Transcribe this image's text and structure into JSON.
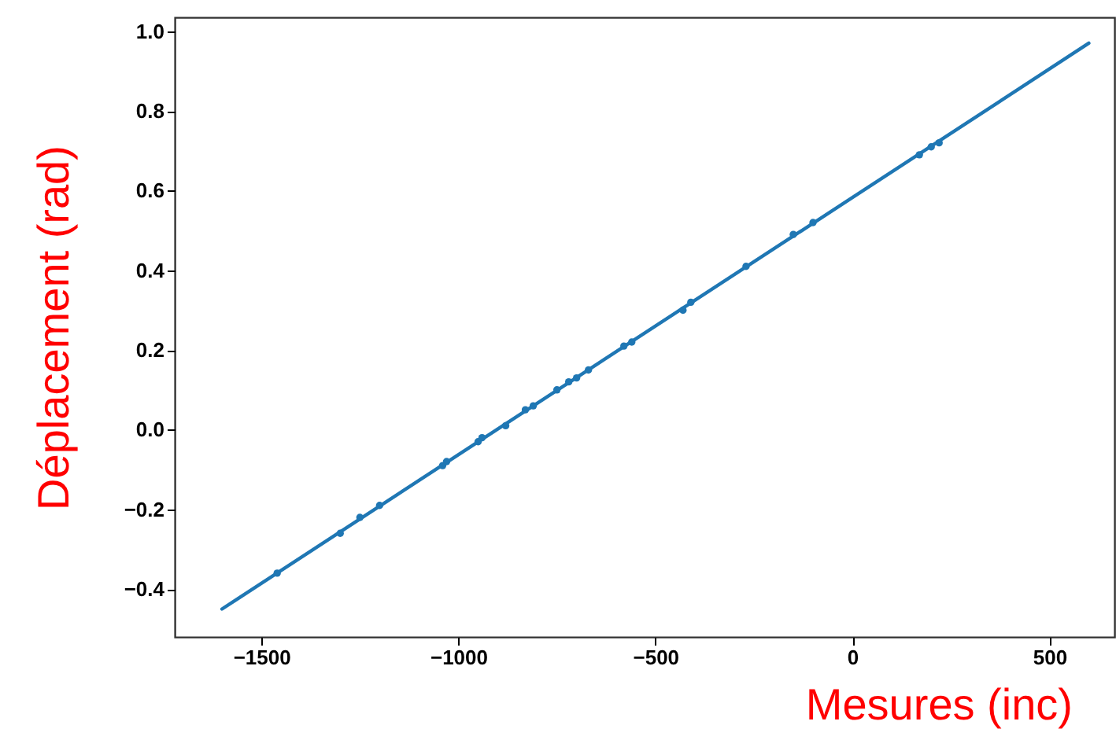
{
  "chart_data": {
    "type": "scatter",
    "xlabel": "Mesures (inc)",
    "ylabel": "Déplacement (rad)",
    "xlim": [
      -1720,
      665
    ],
    "ylim": [
      -0.52,
      1.035
    ],
    "xticks": [
      -1500,
      -1000,
      -500,
      0,
      500
    ],
    "yticks": [
      -0.4,
      -0.2,
      {
        "value": 0,
        "label": "0.0"
      },
      0.2,
      0.4,
      0.6,
      0.8,
      {
        "value": 1,
        "label": "1.0"
      }
    ],
    "grid": false,
    "series": [
      {
        "type": "line",
        "color": "#1f77b4",
        "marker": "none",
        "line_style": "solid",
        "x": [
          -1600,
          600
        ],
        "values": [
          -0.45,
          0.97
        ]
      },
      {
        "color": "#1f77b4",
        "marker": "circle",
        "x": [
          -1460,
          -1300,
          -1250,
          -1200,
          -1040,
          -1030,
          -950,
          -940,
          -880,
          -830,
          -810,
          -750,
          -720,
          -700,
          -670,
          -580,
          -560,
          -430,
          -410,
          -270,
          -150,
          -100,
          170,
          200,
          220
        ],
        "values": [
          -0.36,
          -0.26,
          -0.22,
          -0.19,
          -0.09,
          -0.08,
          -0.03,
          -0.02,
          0.01,
          0.05,
          0.06,
          0.1,
          0.12,
          0.13,
          0.15,
          0.21,
          0.22,
          0.3,
          0.32,
          0.41,
          0.49,
          0.52,
          0.69,
          0.71,
          0.72
        ]
      }
    ]
  }
}
